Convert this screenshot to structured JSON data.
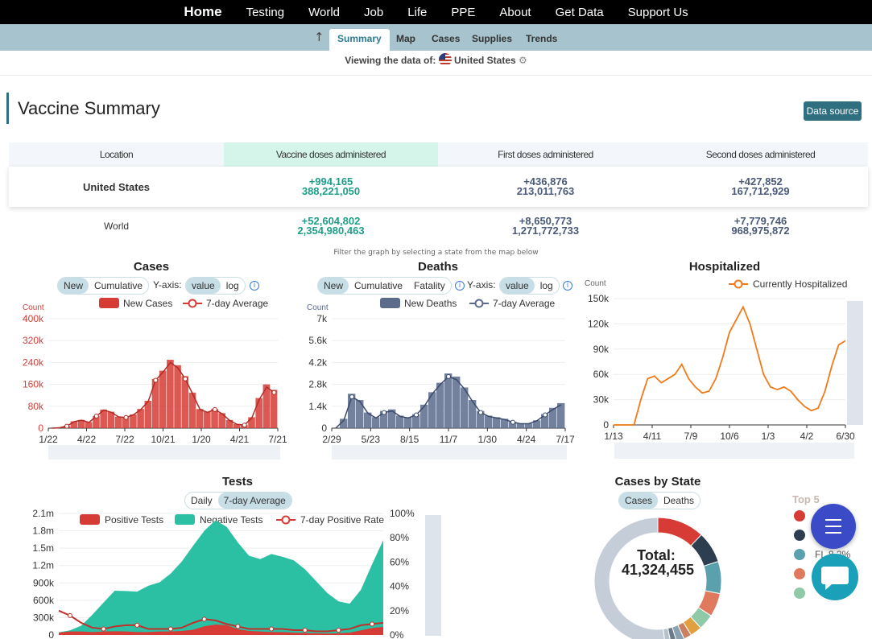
{
  "nav": {
    "items": [
      "Home",
      "Testing",
      "World",
      "Job",
      "Life",
      "PPE",
      "About",
      "Get Data",
      "Support Us"
    ]
  },
  "subnav": {
    "up_icon": "arrow-up-icon",
    "tabs": [
      "Summary",
      "Map",
      "Cases",
      "Supplies",
      "Trends"
    ],
    "active": "Summary"
  },
  "viewing": {
    "label": "Viewing the data of:",
    "country": "United States",
    "flag_icon": "us-flag-icon",
    "settings_icon": "gear-icon"
  },
  "page_title": "Vaccine Summary",
  "data_source_label": "Data source",
  "vaccine_table": {
    "headers": [
      "Location",
      "Vaccine doses administered",
      "First doses administered",
      "Second doses administered"
    ],
    "rows": [
      {
        "location": "United States",
        "doses_delta": "+994,165",
        "doses": "388,221,050",
        "first_delta": "+436,876",
        "first": "213,011,763",
        "second_delta": "+427,852",
        "second": "167,712,929"
      },
      {
        "location": "World",
        "doses_delta": "+52,604,802",
        "doses": "2,354,980,463",
        "first_delta": "+8,650,773",
        "first": "1,271,772,733",
        "second_delta": "+7,779,746",
        "second": "968,975,872"
      }
    ]
  },
  "filter_note": "Filter the graph by selecting a state from the map below",
  "cases_panel": {
    "title": "Cases",
    "toggles": [
      "New",
      "Cumulative"
    ],
    "active_toggle": "New",
    "yaxis_label": "Y-axis:",
    "scale_toggles": [
      "value",
      "log"
    ],
    "active_scale": "value",
    "legend": [
      "New Cases",
      "7-day Average"
    ],
    "y_unit": "Count"
  },
  "deaths_panel": {
    "title": "Deaths",
    "toggles": [
      "New",
      "Cumulative",
      "Fatality"
    ],
    "active_toggle": "New",
    "yaxis_label": "Y-axis:",
    "scale_toggles": [
      "value",
      "log"
    ],
    "active_scale": "value",
    "legend": [
      "New Deaths",
      "7-day Average"
    ],
    "y_unit": "Count"
  },
  "hosp_panel": {
    "title": "Hospitalized",
    "legend": [
      "Currently Hospitalized"
    ],
    "y_unit": "Count",
    "x_unit": "date"
  },
  "tests_panel": {
    "title": "Tests",
    "toggles": [
      "Daily",
      "7-day Average"
    ],
    "active_toggle": "7-day Average",
    "legend": [
      "Positive Tests",
      "Negative Tests",
      "7-day Positive Rate"
    ]
  },
  "state_panel": {
    "title": "Cases by State",
    "toggles": [
      "Cases",
      "Deaths"
    ],
    "active_toggle": "Cases",
    "total_label": "Total:",
    "total_value": "41,324,455",
    "top_label": "Top 5",
    "top_items": [
      "",
      "",
      "FL 8.2%",
      "",
      ""
    ],
    "top_colors": [
      "#d63b35",
      "#2c3e50",
      "#5aa0ad",
      "#e07a5f",
      "#90c9a8"
    ]
  },
  "colors": {
    "cases": "#d63b35",
    "deaths": "#5c6b8c",
    "hosp": "#f07a18",
    "negative": "#2bbfa4",
    "accent": "#2f6f80"
  },
  "chart_data": [
    {
      "type": "bar",
      "title": "Cases",
      "ylabel": "Count",
      "x_ticks": [
        "1/22",
        "4/22",
        "7/22",
        "10/21",
        "1/20",
        "4/21",
        "7/21"
      ],
      "y_ticks": [
        "0",
        "80k",
        "160k",
        "240k",
        "320k",
        "400k"
      ],
      "ylim": [
        0,
        400000
      ],
      "series": [
        {
          "name": "New Cases",
          "values": [
            0,
            2000,
            8000,
            25000,
            30000,
            22000,
            45000,
            68000,
            60000,
            42000,
            40000,
            50000,
            70000,
            100000,
            180000,
            210000,
            250000,
            230000,
            190000,
            130000,
            70000,
            60000,
            70000,
            55000,
            30000,
            15000,
            12000,
            40000,
            110000,
            160000,
            140000
          ]
        },
        {
          "name": "7-day Average",
          "values": [
            0,
            1500,
            7000,
            24000,
            29000,
            21000,
            44000,
            66000,
            58000,
            41000,
            39000,
            49000,
            68000,
            98000,
            175000,
            205000,
            240000,
            220000,
            180000,
            125000,
            68000,
            58000,
            68000,
            52000,
            28000,
            14000,
            11000,
            38000,
            105000,
            150000,
            130000
          ]
        }
      ]
    },
    {
      "type": "bar",
      "title": "Deaths",
      "ylabel": "Count",
      "x_ticks": [
        "2/29",
        "5/23",
        "8/15",
        "11/7",
        "1/30",
        "4/24",
        "7/17"
      ],
      "y_ticks": [
        "0",
        "1.4k",
        "2.8k",
        "4.2k",
        "5.6k",
        "7k"
      ],
      "ylim": [
        0,
        7000
      ],
      "series": [
        {
          "name": "New Deaths",
          "values": [
            0,
            600,
            2200,
            1800,
            1000,
            700,
            1100,
            1200,
            800,
            700,
            900,
            1500,
            2300,
            2900,
            3500,
            3300,
            2600,
            1800,
            1100,
            800,
            700,
            600,
            400,
            300,
            300,
            500,
            900,
            1300,
            1600
          ]
        },
        {
          "name": "7-day Average",
          "values": [
            0,
            500,
            2000,
            1700,
            950,
            650,
            1000,
            1100,
            750,
            650,
            850,
            1400,
            2200,
            2800,
            3300,
            3100,
            2500,
            1700,
            1000,
            750,
            650,
            550,
            380,
            280,
            290,
            480,
            850,
            1200,
            1500
          ]
        }
      ]
    },
    {
      "type": "line",
      "title": "Hospitalized",
      "ylabel": "Count",
      "xlabel": "date",
      "x_ticks": [
        "1/13",
        "4/11",
        "7/9",
        "10/6",
        "1/3",
        "4/2",
        "6/30"
      ],
      "y_ticks": [
        "0",
        "30k",
        "60k",
        "90k",
        "120k",
        "150k"
      ],
      "ylim": [
        0,
        150000
      ],
      "series": [
        {
          "name": "Currently Hospitalized",
          "values": [
            0,
            0,
            0,
            0,
            30000,
            55000,
            58000,
            50000,
            55000,
            60000,
            72000,
            55000,
            45000,
            38000,
            40000,
            55000,
            80000,
            110000,
            125000,
            140000,
            120000,
            90000,
            60000,
            45000,
            42000,
            45000,
            40000,
            30000,
            22000,
            17000,
            20000,
            40000,
            70000,
            95000,
            100000
          ]
        }
      ]
    },
    {
      "type": "area",
      "title": "Tests",
      "y_ticks": [
        "0",
        "300k",
        "600k",
        "900k",
        "1.2m",
        "1.5m",
        "1.8m",
        "2.1m"
      ],
      "y2_ticks": [
        "0%",
        "20%",
        "40%",
        "60%",
        "80%",
        "100%"
      ],
      "ylim": [
        0,
        2100000
      ],
      "series": [
        {
          "name": "Positive Tests",
          "values": [
            40000,
            60000,
            60000,
            50000,
            60000,
            65000,
            60000,
            50000,
            50000,
            60000,
            60000,
            70000,
            90000,
            150000,
            180000,
            170000,
            100000,
            70000,
            60000,
            50000,
            50000,
            40000,
            35000,
            30000,
            25000,
            30000,
            40000,
            80000,
            120000,
            140000
          ]
        },
        {
          "name": "Negative Tests",
          "values": [
            5000,
            20000,
            100000,
            300000,
            500000,
            700000,
            700000,
            700000,
            800000,
            850000,
            1000000,
            1200000,
            1450000,
            1650000,
            1800000,
            1700000,
            1500000,
            1300000,
            1250000,
            1350000,
            1300000,
            1250000,
            1100000,
            900000,
            700000,
            550000,
            500000,
            700000,
            1100000,
            1500000
          ]
        },
        {
          "name": "7-day Positive Rate",
          "values": [
            20,
            16,
            10,
            6,
            5,
            7,
            8,
            8,
            5,
            5,
            5,
            6,
            10,
            13,
            12,
            9,
            7,
            5,
            5,
            5,
            5,
            4,
            4,
            3,
            3,
            4,
            5,
            8,
            9,
            10
          ]
        }
      ]
    },
    {
      "type": "pie",
      "title": "Cases by State",
      "values": [
        12,
        8,
        8.2,
        6,
        4,
        3,
        2,
        2,
        1.5,
        1.5,
        51.8
      ]
    }
  ]
}
